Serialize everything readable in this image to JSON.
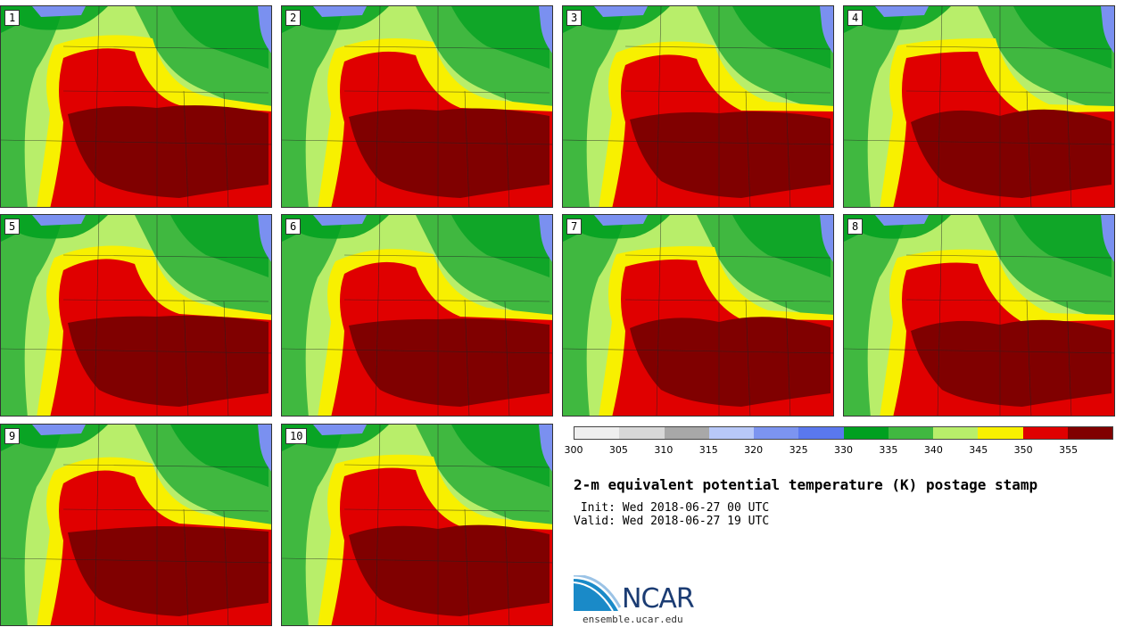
{
  "panels": [
    {
      "label": "1"
    },
    {
      "label": "2"
    },
    {
      "label": "3"
    },
    {
      "label": "4"
    },
    {
      "label": "5"
    },
    {
      "label": "6"
    },
    {
      "label": "7"
    },
    {
      "label": "8"
    },
    {
      "label": "9"
    },
    {
      "label": "10"
    }
  ],
  "colorbar": {
    "colors": [
      "#efefef",
      "#d8d8d8",
      "#a8a8a8",
      "#b8c8f8",
      "#7c94f0",
      "#5a78ee",
      "#00a020",
      "#40b840",
      "#b8ee6a",
      "#f8f000",
      "#e00000",
      "#800000"
    ],
    "ticks": [
      "300",
      "305",
      "310",
      "315",
      "320",
      "325",
      "330",
      "335",
      "340",
      "345",
      "350",
      "355"
    ]
  },
  "title": "2-m equivalent potential temperature (K) postage stamp",
  "init": " Init: Wed 2018-06-27 00 UTC",
  "valid": "Valid: Wed 2018-06-27 19 UTC",
  "logo": {
    "name": "NCAR",
    "url": "ensemble.ucar.edu"
  }
}
